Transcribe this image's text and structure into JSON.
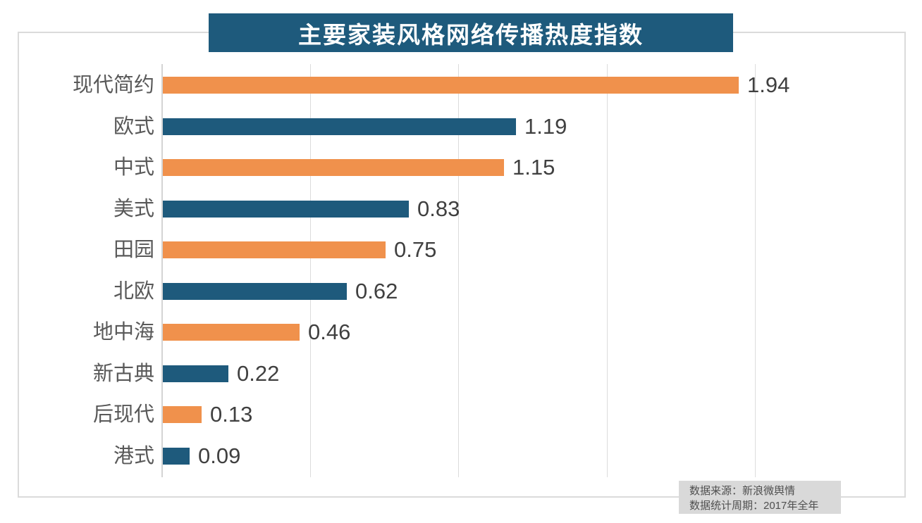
{
  "title": "主要家装风格网络传播热度指数",
  "source": {
    "line1": "数据来源：新浪微舆情",
    "line2": "数据统计周期：2017年全年"
  },
  "colors": {
    "banner_bg": "#1E5A7C",
    "bar_orange": "#F0914C",
    "bar_blue": "#1E5A7C",
    "gridline": "#DCDCDC",
    "frame_border": "#DBDBDB",
    "category_label": "#595959",
    "value_label": "#404040",
    "source_bg": "#D9D9D9",
    "title_text": "#FFFFFF"
  },
  "chart_data": {
    "type": "bar",
    "orientation": "horizontal",
    "title": "主要家装风格网络传播热度指数",
    "categories": [
      "现代简约",
      "欧式",
      "中式",
      "美式",
      "田园",
      "北欧",
      "地中海",
      "新古典",
      "后现代",
      "港式"
    ],
    "values": [
      1.94,
      1.19,
      1.15,
      0.83,
      0.75,
      0.62,
      0.46,
      0.22,
      0.13,
      0.09
    ],
    "data_labels": [
      "1.94",
      "1.19",
      "1.15",
      "0.83",
      "0.75",
      "0.62",
      "0.46",
      "0.22",
      "0.13",
      "0.09"
    ],
    "bar_color_pattern": [
      "#F0914C",
      "#1E5A7C"
    ],
    "xlabel": "",
    "ylabel": "",
    "xlim": [
      0,
      2.5
    ],
    "grid": "vertical",
    "gridline_ticks": [
      0.5,
      1.0,
      1.5,
      2.0
    ],
    "legend": "none",
    "value_labels_visible": true,
    "axis_tick_labels_visible": false
  }
}
